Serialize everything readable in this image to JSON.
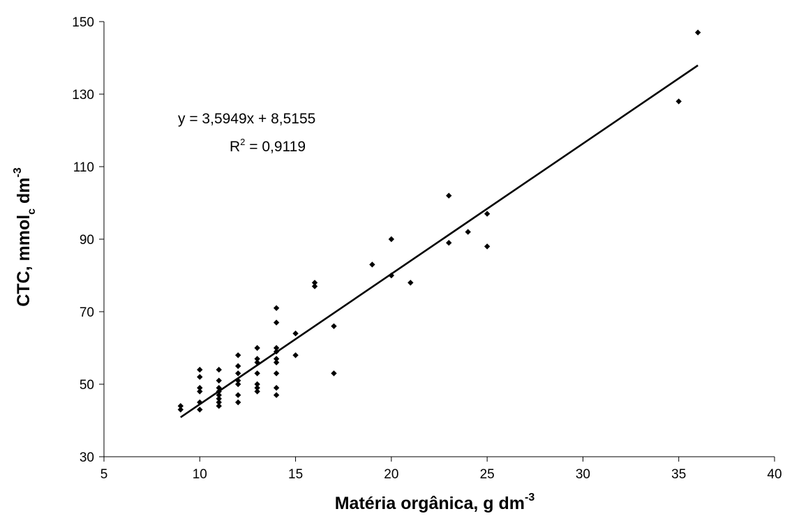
{
  "chart_data": {
    "type": "scatter",
    "equation": "y = 3,5949x + 8,5155",
    "r2_label": "R",
    "r2_exp": "2",
    "r2_value": " = 0,9119",
    "xlabel": "Matéria orgânica, g dm",
    "xlabel_exp": "-3",
    "ylabel_main": "CTC, mmol",
    "ylabel_sub": "c",
    "ylabel_unit": " dm",
    "ylabel_exp": "-3",
    "xlim": [
      5,
      40
    ],
    "ylim": [
      30,
      150
    ],
    "x_ticks": [
      "5",
      "10",
      "15",
      "20",
      "25",
      "30",
      "35",
      "40"
    ],
    "y_ticks": [
      "30",
      "50",
      "70",
      "90",
      "110",
      "130",
      "150"
    ],
    "grid": false,
    "trendline": {
      "slope": 3.5949,
      "intercept": 8.5155,
      "x_range": [
        9,
        36
      ]
    },
    "points": [
      [
        9,
        44
      ],
      [
        9,
        43
      ],
      [
        10,
        54
      ],
      [
        10,
        52
      ],
      [
        10,
        49
      ],
      [
        10,
        48
      ],
      [
        10,
        45
      ],
      [
        10,
        43
      ],
      [
        11,
        54
      ],
      [
        11,
        51
      ],
      [
        11,
        49
      ],
      [
        11,
        48
      ],
      [
        11,
        47
      ],
      [
        11,
        46
      ],
      [
        11,
        45
      ],
      [
        11,
        44
      ],
      [
        12,
        58
      ],
      [
        12,
        55
      ],
      [
        12,
        53
      ],
      [
        12,
        51
      ],
      [
        12,
        50
      ],
      [
        12,
        47
      ],
      [
        12,
        45
      ],
      [
        13,
        60
      ],
      [
        13,
        57
      ],
      [
        13,
        56
      ],
      [
        13,
        53
      ],
      [
        13,
        50
      ],
      [
        13,
        49
      ],
      [
        13,
        48
      ],
      [
        14,
        71
      ],
      [
        14,
        67
      ],
      [
        14,
        60
      ],
      [
        14,
        59
      ],
      [
        14,
        57
      ],
      [
        14,
        56
      ],
      [
        14,
        53
      ],
      [
        14,
        49
      ],
      [
        14,
        47
      ],
      [
        15,
        64
      ],
      [
        15,
        58
      ],
      [
        16,
        78
      ],
      [
        16,
        77
      ],
      [
        17,
        66
      ],
      [
        17,
        53
      ],
      [
        19,
        83
      ],
      [
        20,
        90
      ],
      [
        20,
        80
      ],
      [
        21,
        78
      ],
      [
        23,
        102
      ],
      [
        23,
        89
      ],
      [
        24,
        92
      ],
      [
        25,
        97
      ],
      [
        25,
        88
      ],
      [
        35,
        128
      ],
      [
        36,
        147
      ]
    ]
  }
}
